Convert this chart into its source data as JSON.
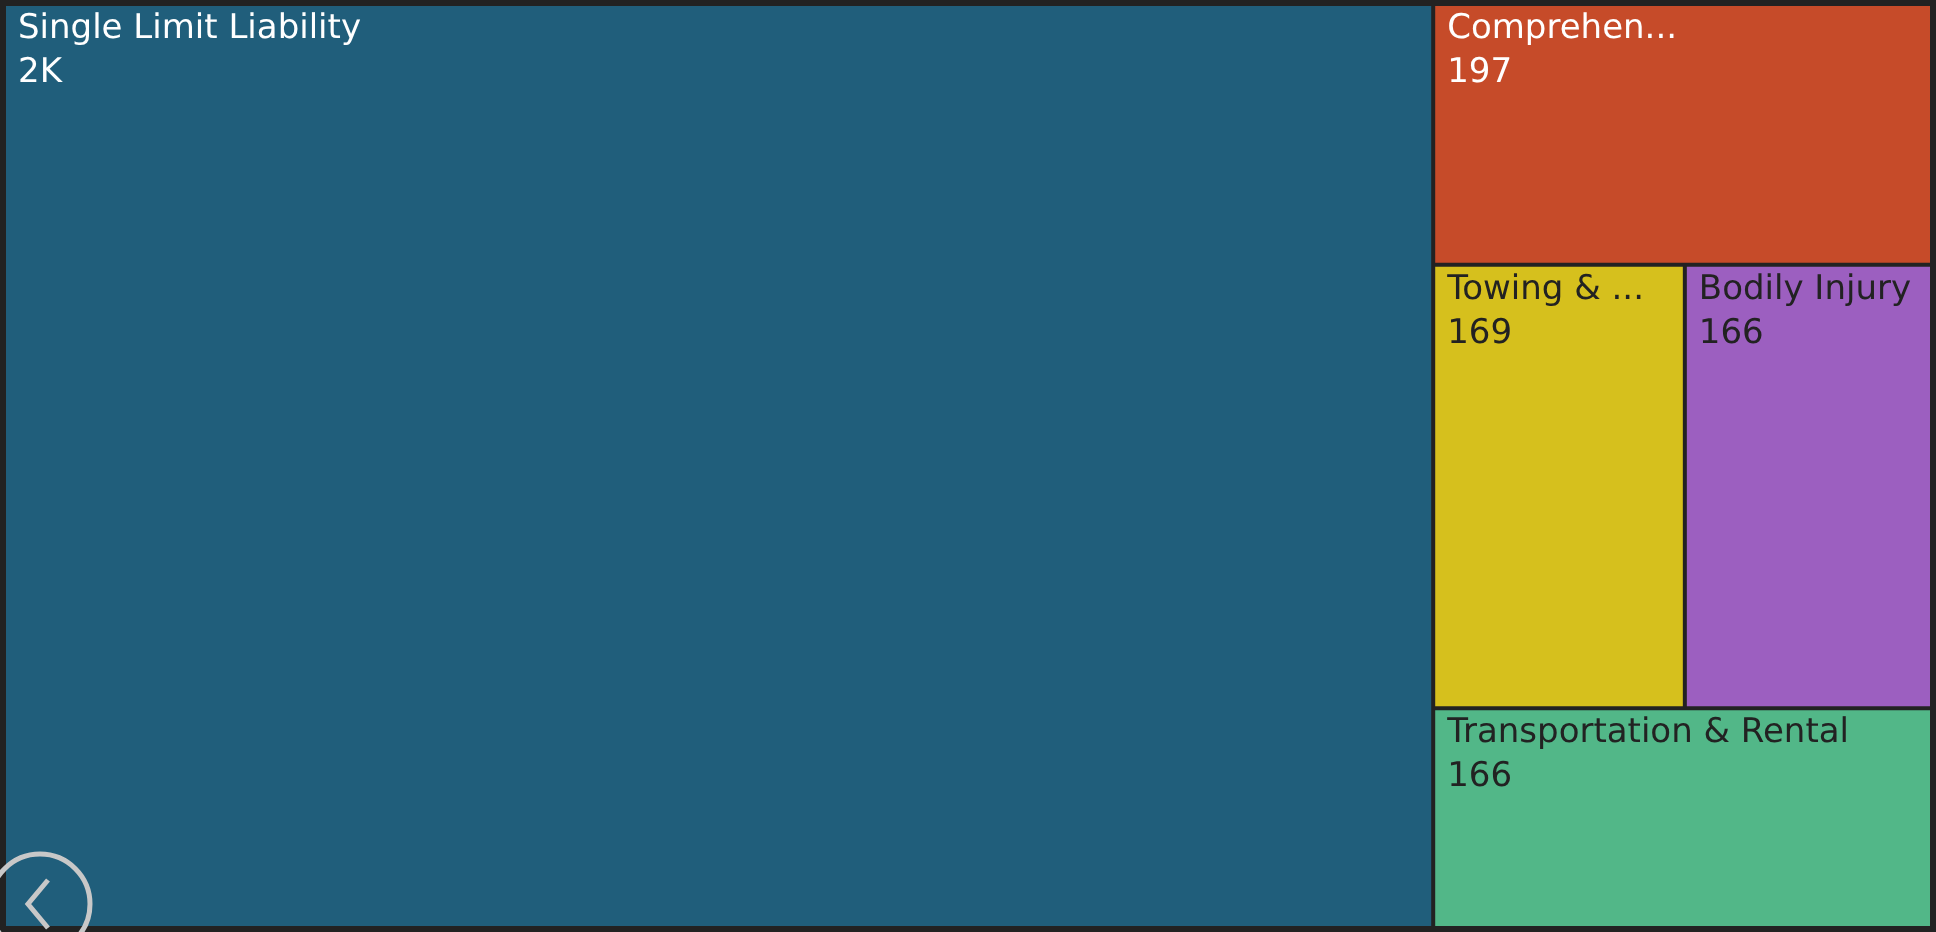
{
  "chart_data": {
    "type": "other",
    "categories": [
      "Single Limit Liability",
      "Comprehen...",
      "Towing & ...",
      "Bodily Injury",
      "Transportation & Rental"
    ],
    "values": [
      2000,
      197,
      169,
      166,
      166
    ],
    "value_labels": [
      "2K",
      "197",
      "169",
      "166",
      "166"
    ],
    "colors": [
      "#205e7b",
      "#c64b29",
      "#d6c01d",
      "#9c5fc0",
      "#52b788"
    ]
  }
}
